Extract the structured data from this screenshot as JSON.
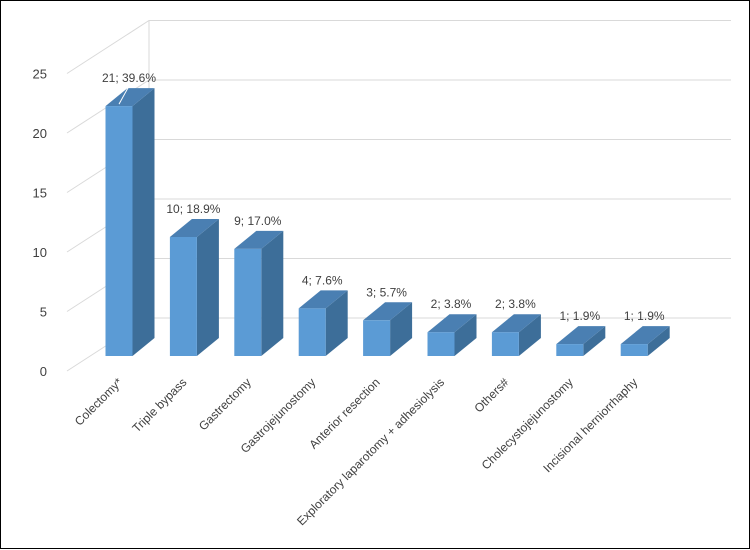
{
  "chart_data": {
    "type": "bar",
    "style": "3d-column",
    "categories": [
      "Colectomy*",
      "Triple bypass",
      "Gastrectomy",
      "Gastrojejunostomy",
      "Anterior resection",
      "Exploratory laparotomy + adhesiolysis",
      "Others#",
      "Cholecystojejunostomy",
      "Incisional herniorrhaphy"
    ],
    "values": [
      21,
      10,
      9,
      4,
      3,
      2,
      2,
      1,
      1
    ],
    "data_labels": [
      "21; 39.6%",
      "10; 18.9%",
      "9; 17.0%",
      "4; 7.6%",
      "3; 5.7%",
      "2; 3.8%",
      "2; 3.8%",
      "1; 1.9%",
      "1; 1.9%"
    ],
    "yticks": [
      "0",
      "5",
      "10",
      "15",
      "20",
      "25"
    ],
    "ylim": [
      0,
      25
    ],
    "grid": true,
    "legend": "none",
    "colors": {
      "bar_front": "#5B9BD5",
      "bar_side": "#3D6E99",
      "bar_top": "#4A7FB2",
      "grid": "#d9d9d9",
      "text": "#404040"
    }
  }
}
